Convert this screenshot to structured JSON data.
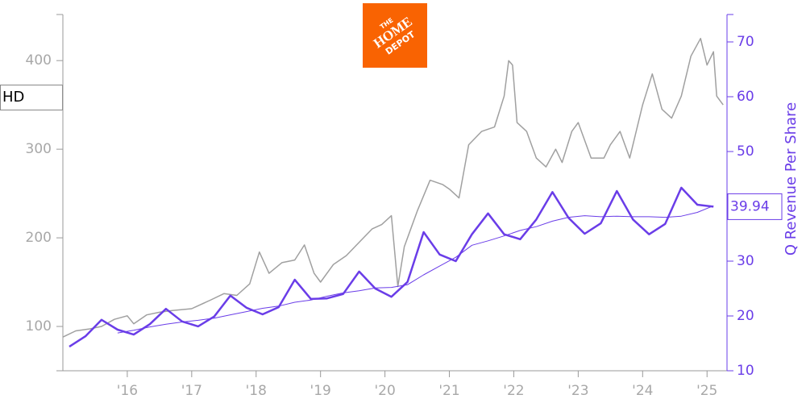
{
  "chart_data": {
    "type": "line",
    "ticker": "HD",
    "logo": [
      "THE",
      "HOME",
      "DEPOT"
    ],
    "y2label": "Q Revenue Per Share",
    "xlim": [
      2015.0,
      2025.31
    ],
    "xticks": [
      {
        "value": 2016,
        "label": "'16"
      },
      {
        "value": 2017,
        "label": "'17"
      },
      {
        "value": 2018,
        "label": "'18"
      },
      {
        "value": 2019,
        "label": "'19"
      },
      {
        "value": 2020,
        "label": "'20"
      },
      {
        "value": 2021,
        "label": "'21"
      },
      {
        "value": 2022,
        "label": "'22"
      },
      {
        "value": 2023,
        "label": "'23"
      },
      {
        "value": 2024,
        "label": "'24"
      },
      {
        "value": 2025,
        "label": "'25"
      }
    ],
    "ylim": [
      50,
      452
    ],
    "yticks": [
      100,
      200,
      300,
      400
    ],
    "y2lim": [
      10,
      75
    ],
    "y2ticks": [
      10,
      20,
      30,
      40,
      50,
      60,
      70
    ],
    "series": [
      {
        "color": "#a0a0a0",
        "width": 1.5,
        "axis": "y",
        "x": [
          2015.0,
          2015.2,
          2015.4,
          2015.6,
          2015.8,
          2016.0,
          2016.1,
          2016.3,
          2016.5,
          2016.7,
          2017.0,
          2017.3,
          2017.5,
          2017.7,
          2017.9,
          2018.05,
          2018.2,
          2018.4,
          2018.6,
          2018.75,
          2018.9,
          2019.0,
          2019.2,
          2019.4,
          2019.6,
          2019.8,
          2019.95,
          2020.1,
          2020.2,
          2020.3,
          2020.5,
          2020.7,
          2020.9,
          2021.0,
          2021.15,
          2021.3,
          2021.5,
          2021.7,
          2021.85,
          2021.92,
          2021.98,
          2022.05,
          2022.2,
          2022.35,
          2022.5,
          2022.65,
          2022.75,
          2022.9,
          2023.0,
          2023.2,
          2023.4,
          2023.5,
          2023.65,
          2023.8,
          2024.0,
          2024.15,
          2024.3,
          2024.45,
          2024.6,
          2024.75,
          2024.9,
          2025.0,
          2025.1,
          2025.15,
          2025.25
        ],
        "values": [
          88,
          95,
          97,
          100,
          108,
          112,
          103,
          113,
          116,
          118,
          120,
          130,
          137,
          135,
          148,
          184,
          160,
          172,
          175,
          192,
          160,
          150,
          170,
          180,
          195,
          210,
          215,
          225,
          145,
          190,
          230,
          265,
          260,
          255,
          245,
          305,
          320,
          325,
          360,
          400,
          395,
          330,
          320,
          290,
          280,
          300,
          285,
          320,
          330,
          290,
          290,
          305,
          320,
          290,
          350,
          385,
          345,
          335,
          360,
          405,
          425,
          395,
          410,
          360,
          350
        ]
      },
      {
        "color": "#6a3de8",
        "width": 2.5,
        "axis": "y2",
        "x": [
          2015.1,
          2015.35,
          2015.6,
          2015.85,
          2016.1,
          2016.35,
          2016.6,
          2016.85,
          2017.1,
          2017.35,
          2017.6,
          2017.85,
          2018.1,
          2018.35,
          2018.6,
          2018.85,
          2019.1,
          2019.35,
          2019.6,
          2019.85,
          2020.1,
          2020.35,
          2020.6,
          2020.85,
          2021.1,
          2021.35,
          2021.6,
          2021.85,
          2022.1,
          2022.35,
          2022.6,
          2022.85,
          2023.1,
          2023.35,
          2023.6,
          2023.85,
          2024.1,
          2024.35,
          2024.6,
          2024.85,
          2025.1
        ],
        "values": [
          14.4,
          16.3,
          19.3,
          17.5,
          16.6,
          18.5,
          21.3,
          19.0,
          18.1,
          19.9,
          23.7,
          21.5,
          20.3,
          21.6,
          26.6,
          23.1,
          23.2,
          24.0,
          28.1,
          25.0,
          23.5,
          26.2,
          35.3,
          31.2,
          30.0,
          34.9,
          38.7,
          34.9,
          34.0,
          37.6,
          42.6,
          37.9,
          35.0,
          36.9,
          42.8,
          37.6,
          34.9,
          36.8,
          43.4,
          40.3,
          39.94
        ]
      },
      {
        "color": "#6a3de8",
        "width": 1,
        "axis": "y2",
        "x": [
          2015.1,
          2015.35,
          2015.6,
          2015.85,
          2016.1,
          2016.35,
          2016.6,
          2016.85,
          2017.1,
          2017.35,
          2017.6,
          2017.85,
          2018.1,
          2018.35,
          2018.6,
          2018.85,
          2019.1,
          2019.35,
          2019.6,
          2019.85,
          2020.1,
          2020.35,
          2020.6,
          2020.85,
          2021.1,
          2021.35,
          2021.6,
          2021.85,
          2022.1,
          2022.35,
          2022.6,
          2022.85,
          2023.1,
          2023.35,
          2023.6,
          2023.85,
          2024.1,
          2024.35,
          2024.6,
          2024.85,
          2025.1
        ],
        "values": [
          null,
          null,
          null,
          16.9,
          17.4,
          18.0,
          18.5,
          18.9,
          19.2,
          19.6,
          20.2,
          20.8,
          21.4,
          21.8,
          22.5,
          22.9,
          23.6,
          24.2,
          24.6,
          25.1,
          25.2,
          25.7,
          27.5,
          29.1,
          30.7,
          32.9,
          33.7,
          34.6,
          35.6,
          36.3,
          37.3,
          38.0,
          38.3,
          38.1,
          38.2,
          38.1,
          38.1,
          38.0,
          38.2,
          38.9,
          40.1
        ]
      }
    ]
  }
}
